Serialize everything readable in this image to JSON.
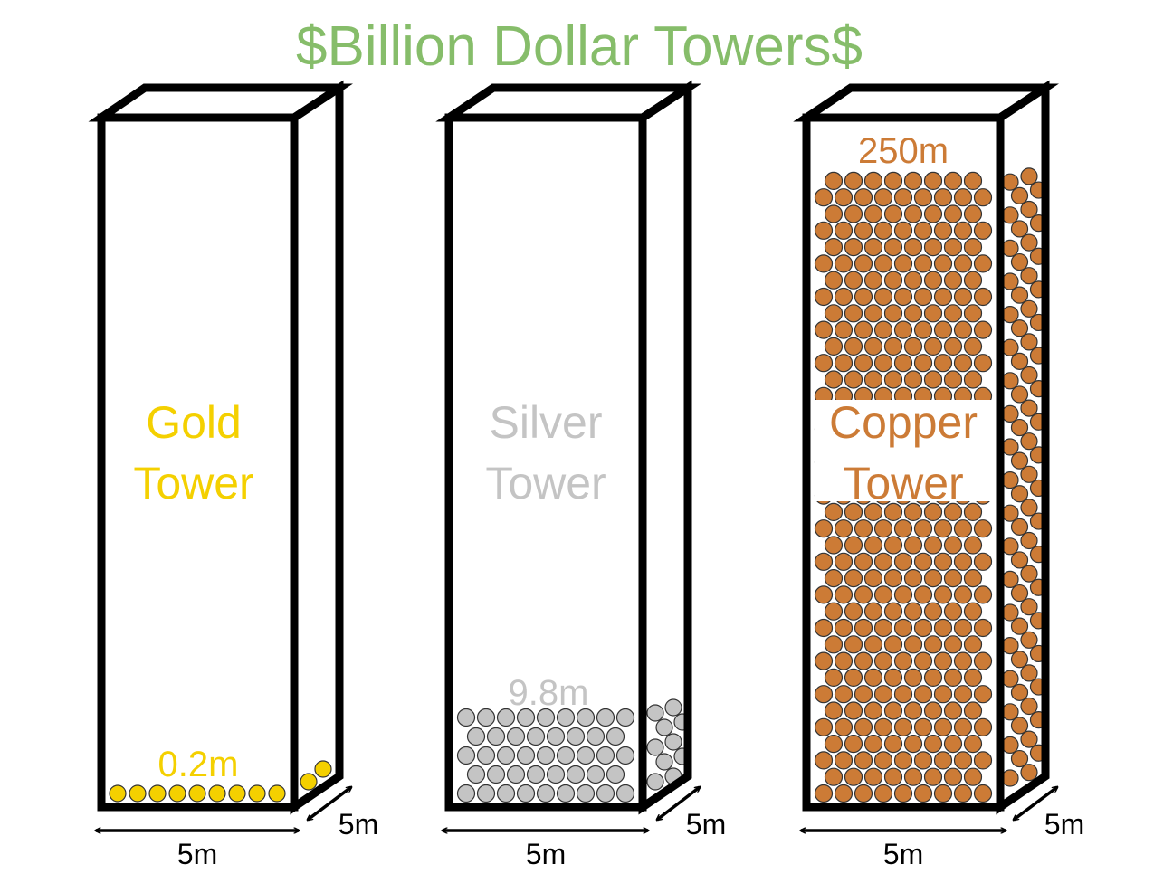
{
  "title": "$Billion Dollar Towers$",
  "colors": {
    "title": "#86bd6a",
    "outline": "#000000",
    "gold": "#f4d000",
    "silver": "#c4c4c4",
    "copper": "#cc7b36"
  },
  "towers": [
    {
      "id": "gold",
      "name_line1": "Gold",
      "name_line2": "Tower",
      "height_label": "0.2m",
      "width_label": "5m",
      "depth_label": "5m",
      "fill": "partial-bottom",
      "fill_height_m": 0.2
    },
    {
      "id": "silver",
      "name_line1": "Silver",
      "name_line2": "Tower",
      "height_label": "9.8m",
      "width_label": "5m",
      "depth_label": "5m",
      "fill": "partial-bottom",
      "fill_height_m": 9.8
    },
    {
      "id": "copper",
      "name_line1": "Copper",
      "name_line2": "Tower",
      "height_label": "250m",
      "width_label": "5m",
      "depth_label": "5m",
      "fill": "full",
      "fill_height_m": 250
    }
  ]
}
